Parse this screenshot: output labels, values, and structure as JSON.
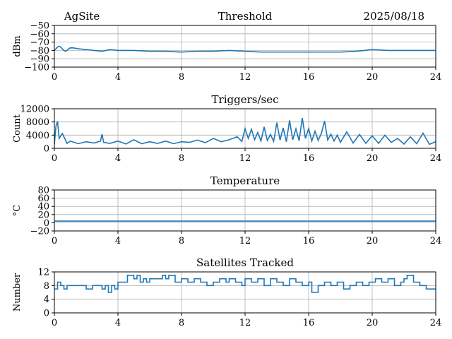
{
  "header": {
    "site": "AgSite",
    "date": "2025/08/18"
  },
  "chart_data": [
    {
      "type": "line",
      "title": "Threshold",
      "xlabel": "",
      "ylabel": "dBm",
      "xlim": [
        0,
        24
      ],
      "ylim": [
        -100,
        -50
      ],
      "x_ticks": [
        "0",
        "4",
        "8",
        "12",
        "16",
        "20",
        "24"
      ],
      "y_ticks": [
        "−100",
        "−90",
        "−80",
        "−70",
        "−60",
        "−50"
      ],
      "grid": true,
      "color": "#1f77b4",
      "series": [
        {
          "x": [
            0,
            0.1,
            0.2,
            0.3,
            0.4,
            0.5,
            0.6,
            0.7,
            0.8,
            0.9,
            1.0,
            1.2,
            1.5,
            2,
            2.5,
            3,
            3.5,
            4,
            5,
            6,
            7,
            8,
            9,
            10,
            11,
            12,
            13,
            14,
            15,
            16,
            17,
            18,
            19,
            19.5,
            20,
            21,
            22,
            23,
            24
          ],
          "y": [
            -80,
            -78,
            -76,
            -75,
            -76,
            -78,
            -80,
            -81,
            -80,
            -78,
            -77,
            -77,
            -78,
            -79,
            -80,
            -81,
            -79,
            -80,
            -80,
            -81,
            -81,
            -82,
            -81,
            -81,
            -80,
            -81,
            -82,
            -82,
            -82,
            -82,
            -82,
            -82,
            -81,
            -80,
            -79,
            -80,
            -80,
            -80,
            -80
          ]
        }
      ]
    },
    {
      "type": "line",
      "title": "Triggers/sec",
      "xlabel": "",
      "ylabel": "Count",
      "xlim": [
        0,
        24
      ],
      "ylim": [
        0,
        12000
      ],
      "x_ticks": [
        "0",
        "4",
        "8",
        "12",
        "16",
        "20",
        "24"
      ],
      "y_ticks": [
        "0",
        "4000",
        "8000",
        "12000"
      ],
      "grid": true,
      "color": "#1f77b4",
      "series": [
        {
          "x": [
            0,
            0.1,
            0.2,
            0.3,
            0.5,
            0.8,
            1,
            1.5,
            2,
            2.5,
            2.9,
            3,
            3.1,
            3.5,
            4,
            4.5,
            5,
            5.5,
            6,
            6.5,
            7,
            7.5,
            8,
            8.5,
            9,
            9.5,
            10,
            10.5,
            11,
            11.5,
            11.8,
            12,
            12.2,
            12.4,
            12.6,
            12.8,
            13,
            13.2,
            13.4,
            13.6,
            13.8,
            14,
            14.2,
            14.4,
            14.6,
            14.8,
            15,
            15.2,
            15.4,
            15.6,
            15.8,
            16,
            16.2,
            16.4,
            16.6,
            16.8,
            17,
            17.2,
            17.4,
            17.6,
            17.8,
            18,
            18.4,
            18.8,
            19.2,
            19.6,
            20,
            20.4,
            20.8,
            21.2,
            21.6,
            22,
            22.4,
            22.8,
            23.2,
            23.6,
            24
          ],
          "y": [
            1200,
            6800,
            8200,
            3000,
            4500,
            1500,
            2200,
            1400,
            2000,
            1600,
            2200,
            4300,
            1800,
            1500,
            2200,
            1300,
            2600,
            1400,
            2000,
            1500,
            2200,
            1400,
            2000,
            1800,
            2500,
            1700,
            3000,
            2000,
            2600,
            3500,
            2100,
            6000,
            3000,
            5800,
            2600,
            4800,
            2200,
            6500,
            2400,
            4200,
            2100,
            7800,
            2500,
            6200,
            2000,
            8500,
            2600,
            5900,
            2300,
            9200,
            3000,
            6000,
            2200,
            5200,
            2400,
            4500,
            8300,
            2500,
            4300,
            2200,
            4000,
            1800,
            5000,
            1600,
            4200,
            1500,
            3800,
            1500,
            4000,
            1800,
            3000,
            1300,
            3500,
            1400,
            4600,
            1200,
            2000
          ]
        }
      ]
    },
    {
      "type": "line",
      "title": "Temperature",
      "xlabel": "",
      "ylabel": "°C",
      "xlim": [
        0,
        24
      ],
      "ylim": [
        -20,
        80
      ],
      "x_ticks": [
        "0",
        "4",
        "8",
        "12",
        "16",
        "20",
        "24"
      ],
      "y_ticks": [
        "−20",
        "0",
        "20",
        "40",
        "60",
        "80"
      ],
      "grid": true,
      "color": "#1f77b4",
      "series": [
        {
          "x": [
            0,
            24
          ],
          "y": [
            4,
            4
          ]
        }
      ]
    },
    {
      "type": "line",
      "title": "Satellites Tracked",
      "xlabel": "",
      "ylabel": "Number",
      "xlim": [
        0,
        24
      ],
      "ylim": [
        0,
        12
      ],
      "x_ticks": [
        "0",
        "4",
        "8",
        "12",
        "16",
        "20",
        "24"
      ],
      "y_ticks": [
        "0",
        "4",
        "8",
        "12"
      ],
      "grid": true,
      "color": "#1f77b4",
      "series": [
        {
          "x": [
            0,
            0.2,
            0.4,
            0.6,
            0.8,
            1.2,
            1.6,
            2,
            2.4,
            2.8,
            3,
            3.2,
            3.4,
            3.6,
            3.8,
            4,
            4.4,
            4.6,
            4.8,
            5,
            5.2,
            5.4,
            5.6,
            5.8,
            6,
            6.4,
            6.8,
            7,
            7.2,
            7.6,
            8,
            8.4,
            8.8,
            9.2,
            9.6,
            10,
            10.4,
            10.8,
            11,
            11.4,
            11.8,
            12,
            12.4,
            12.8,
            13.2,
            13.6,
            14,
            14.4,
            14.8,
            15.2,
            15.6,
            16,
            16.2,
            16.6,
            17,
            17.4,
            17.8,
            18.2,
            18.6,
            19,
            19.4,
            19.8,
            20.2,
            20.6,
            21,
            21.4,
            21.8,
            22,
            22.2,
            22.6,
            23,
            23.4,
            24
          ],
          "y": [
            7,
            9,
            8,
            7,
            8,
            8,
            8,
            7,
            8,
            8,
            7,
            8,
            6,
            8,
            7,
            9,
            9,
            11,
            11,
            10,
            11,
            9,
            10,
            9,
            10,
            10,
            11,
            10,
            11,
            9,
            10,
            9,
            10,
            9,
            8,
            9,
            10,
            9,
            10,
            9,
            8,
            10,
            9,
            10,
            8,
            10,
            9,
            8,
            10,
            9,
            8,
            9,
            6,
            8,
            9,
            8,
            9,
            7,
            8,
            9,
            8,
            9,
            10,
            9,
            10,
            8,
            9,
            10,
            11,
            9,
            8,
            7,
            7
          ]
        }
      ]
    }
  ]
}
